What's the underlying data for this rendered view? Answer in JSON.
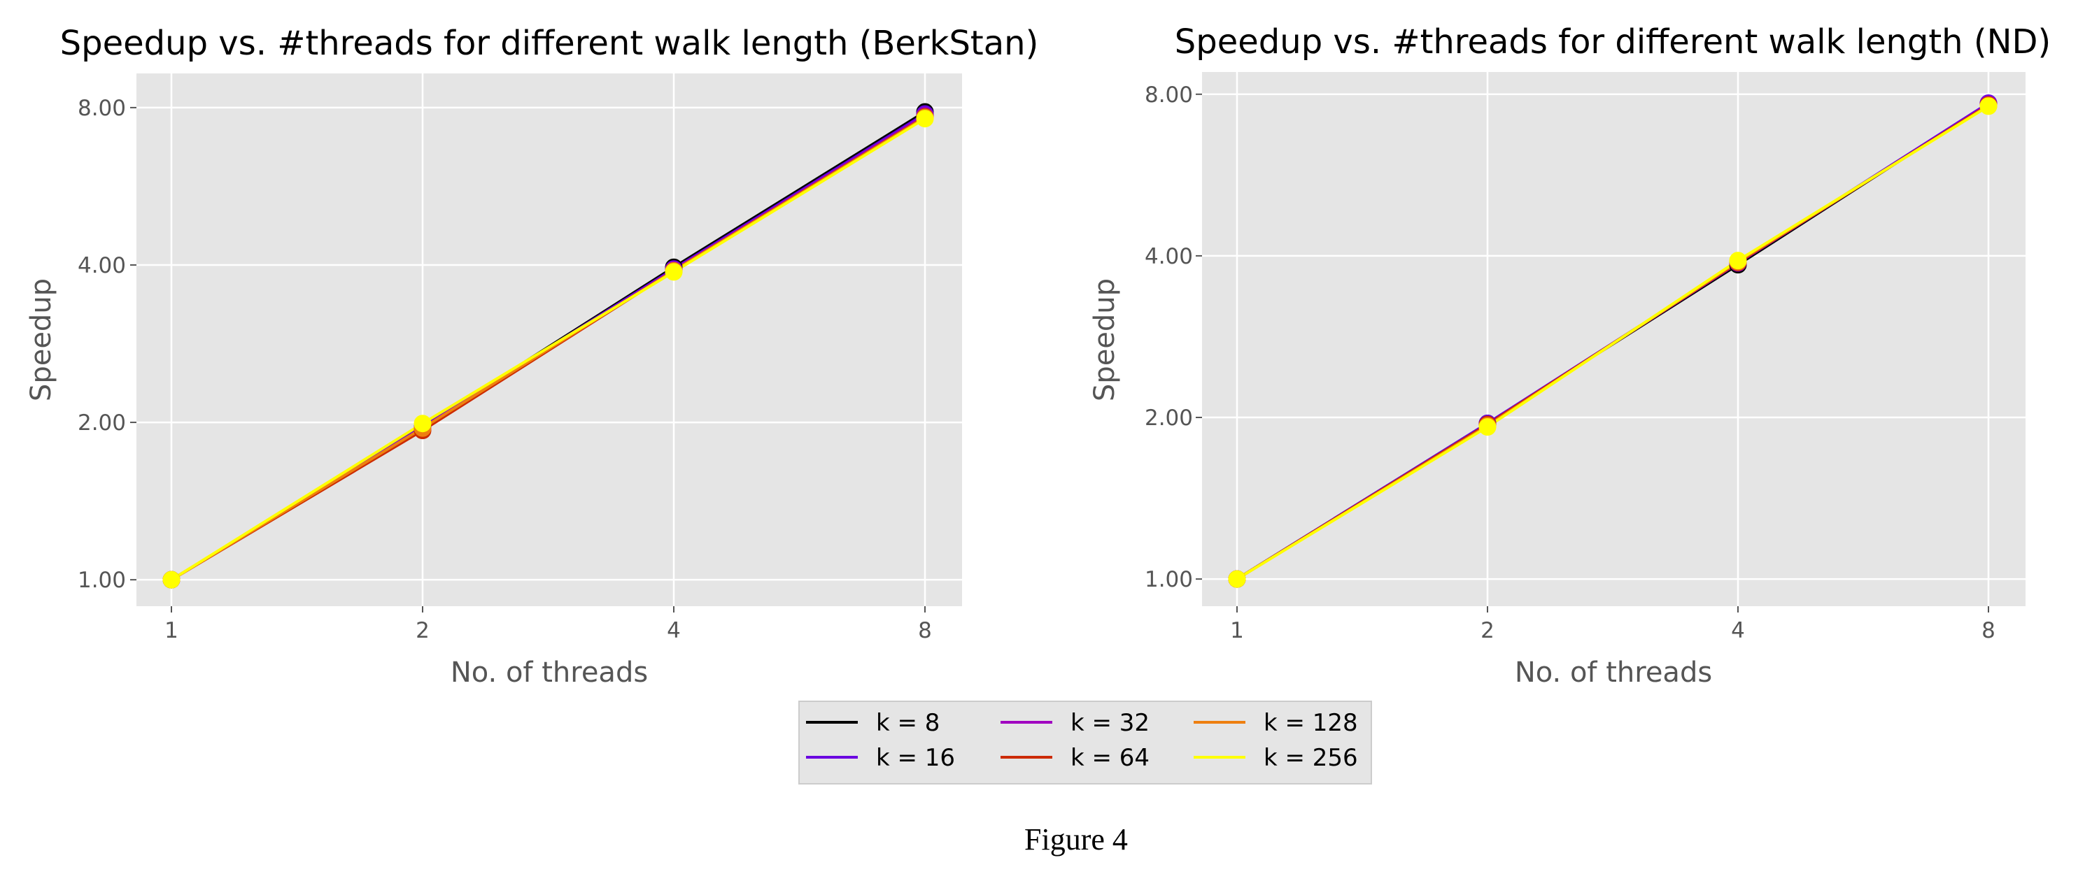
{
  "figure_caption": "Figure 4",
  "legend": {
    "entries": [
      "k = 8",
      "k = 16",
      "k = 32",
      "k = 64",
      "k = 128",
      "k = 256"
    ],
    "colors": [
      "#000000",
      "#6a00e0",
      "#a000c0",
      "#cc2a00",
      "#ee7f10",
      "#ffff00"
    ]
  },
  "chart_data": [
    {
      "type": "line",
      "title": "Speedup vs. #threads for different walk length (BerkStan)",
      "xlabel": "No. of threads",
      "ylabel": "Speedup",
      "x": [
        1,
        2,
        4,
        8
      ],
      "x_tick_labels": [
        "1",
        "2",
        "4",
        "8"
      ],
      "xscale": "log2",
      "yscale": "log2",
      "ylim": [
        0.89,
        9.3
      ],
      "y_ticks": [
        1,
        2,
        4,
        8
      ],
      "y_tick_labels": [
        "1.00",
        "2.00",
        "4.00",
        "8.00"
      ],
      "grid": true,
      "series": [
        {
          "name": "k = 8",
          "values": [
            1.0,
            1.96,
            3.96,
            7.85
          ]
        },
        {
          "name": "k = 16",
          "values": [
            1.0,
            1.96,
            3.93,
            7.78
          ]
        },
        {
          "name": "k = 32",
          "values": [
            1.0,
            1.95,
            3.91,
            7.72
          ]
        },
        {
          "name": "k = 64",
          "values": [
            1.0,
            1.93,
            3.9,
            7.68
          ]
        },
        {
          "name": "k = 128",
          "values": [
            1.0,
            1.95,
            3.9,
            7.66
          ]
        },
        {
          "name": "k = 256",
          "values": [
            1.0,
            1.99,
            3.88,
            7.62
          ]
        }
      ]
    },
    {
      "type": "line",
      "title": "Speedup vs. #threads for different walk length (ND)",
      "xlabel": "No. of threads",
      "ylabel": "Speedup",
      "x": [
        1,
        2,
        4,
        8
      ],
      "x_tick_labels": [
        "1",
        "2",
        "4",
        "8"
      ],
      "xscale": "log2",
      "yscale": "log2",
      "ylim": [
        0.89,
        8.8
      ],
      "y_ticks": [
        1,
        2,
        4,
        8
      ],
      "y_tick_labels": [
        "1.00",
        "2.00",
        "4.00",
        "8.00"
      ],
      "grid": true,
      "series": [
        {
          "name": "k = 8",
          "values": [
            1.0,
            1.95,
            3.85,
            7.68
          ]
        },
        {
          "name": "k = 16",
          "values": [
            1.0,
            1.95,
            3.88,
            7.7
          ]
        },
        {
          "name": "k = 32",
          "values": [
            1.0,
            1.94,
            3.88,
            7.66
          ]
        },
        {
          "name": "k = 64",
          "values": [
            1.0,
            1.94,
            3.89,
            7.64
          ]
        },
        {
          "name": "k = 128",
          "values": [
            1.0,
            1.93,
            3.9,
            7.62
          ]
        },
        {
          "name": "k = 256",
          "values": [
            1.0,
            1.92,
            3.92,
            7.6
          ]
        }
      ]
    }
  ]
}
